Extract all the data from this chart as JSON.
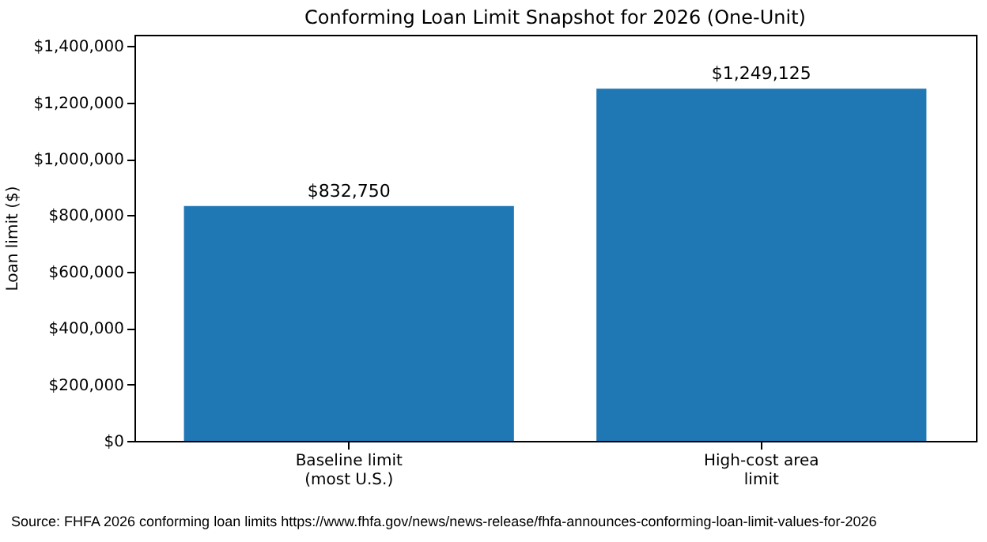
{
  "chart_data": {
    "type": "bar",
    "title": "Conforming Loan Limit Snapshot for 2026 (One-Unit)",
    "ylabel": "Loan limit ($)",
    "categories": [
      "Baseline limit\n(most U.S.)",
      "High-cost area\nlimit"
    ],
    "values": [
      832750,
      1249125
    ],
    "color": "#1f77b4",
    "value_labels": [
      "$832,750",
      "$1,249,125"
    ],
    "ylim": [
      0,
      1440000
    ],
    "yticks": [
      {
        "value": 0,
        "label": "$0"
      },
      {
        "value": 200000,
        "label": "$200,000"
      },
      {
        "value": 400000,
        "label": "$400,000"
      },
      {
        "value": 600000,
        "label": "$600,000"
      },
      {
        "value": 800000,
        "label": "$800,000"
      },
      {
        "value": 1000000,
        "label": "$1,000,000"
      },
      {
        "value": 1200000,
        "label": "$1,200,000"
      },
      {
        "value": 1400000,
        "label": "$1,400,000"
      }
    ],
    "grid": false,
    "annotations": [
      "Source: FHFA 2026 conforming loan limits https://www.fhfa.gov/news/news-release/fhfa-announces-conforming-loan-limit-values-for-2026"
    ]
  }
}
